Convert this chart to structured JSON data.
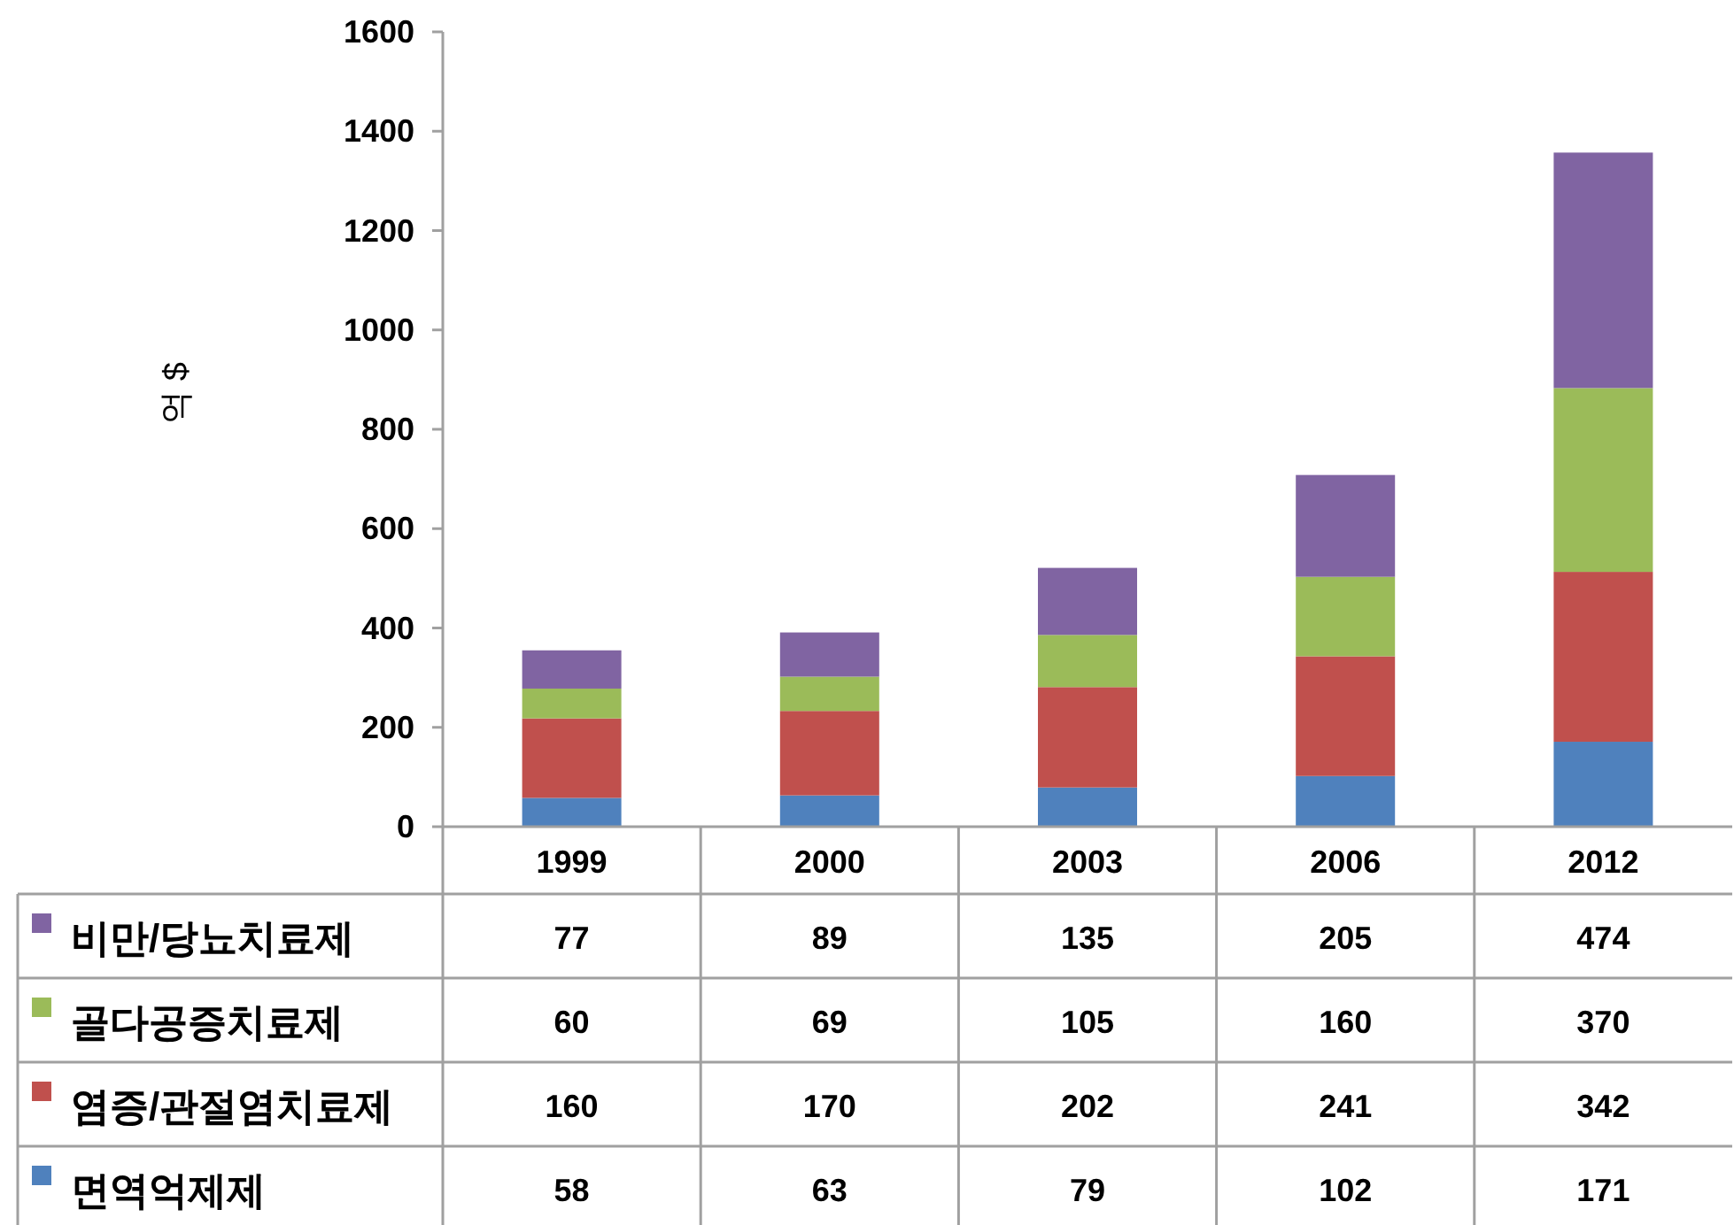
{
  "chart_data": {
    "type": "bar",
    "stacked": true,
    "ylabel": "억 $",
    "categories": [
      "1999",
      "2000",
      "2003",
      "2006",
      "2012"
    ],
    "series": [
      {
        "name": "면역억제제",
        "color": "#4f81bd",
        "values": [
          58,
          63,
          79,
          102,
          171
        ]
      },
      {
        "name": "염증/관절염치료제",
        "color": "#c0504d",
        "values": [
          160,
          170,
          202,
          241,
          342
        ]
      },
      {
        "name": "골다공증치료제",
        "color": "#9bbb59",
        "values": [
          60,
          69,
          105,
          160,
          370
        ]
      },
      {
        "name": "비만/당뇨치료제",
        "color": "#8064a2",
        "values": [
          77,
          89,
          135,
          205,
          474
        ]
      }
    ],
    "ylim": [
      0,
      1600
    ],
    "yticks": [
      0,
      200,
      400,
      600,
      800,
      1000,
      1200,
      1400,
      1600
    ],
    "data_labels": true,
    "legend": "bottom",
    "grid": false
  }
}
